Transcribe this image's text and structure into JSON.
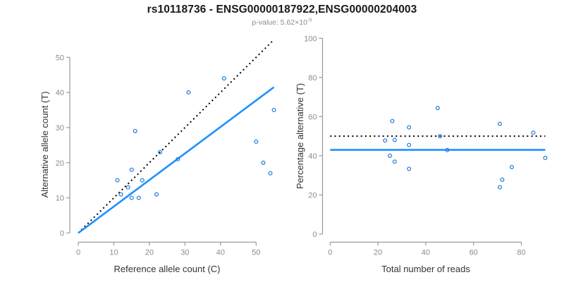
{
  "header": {
    "title": "rs10118736 - ENSG00000187922,ENSG00000204003",
    "pvalue_prefix": "p-value: 5.62×10",
    "pvalue_exponent": "-5"
  },
  "colors": {
    "point": "#2B84DD",
    "fit_line": "#1E90FF",
    "reference_line": "#000000",
    "axis": "#9a9a9a",
    "tick_text": "#8c8c8c",
    "label_text": "#333333"
  },
  "chart_data": [
    {
      "type": "scatter",
      "name": "allele-count-scatter",
      "xlabel": "Reference allele count (C)",
      "ylabel": "Alternative allele count (T)",
      "xlim": [
        0,
        55
      ],
      "ylim": [
        0,
        55
      ],
      "xticks": [
        0,
        10,
        20,
        30,
        40,
        50
      ],
      "yticks": [
        0,
        10,
        20,
        30,
        40,
        50
      ],
      "grid": false,
      "points": [
        [
          11,
          15
        ],
        [
          12,
          11
        ],
        [
          14,
          13
        ],
        [
          15,
          10
        ],
        [
          15,
          18
        ],
        [
          16,
          29
        ],
        [
          17,
          10
        ],
        [
          18,
          15
        ],
        [
          22,
          11
        ],
        [
          23,
          23
        ],
        [
          28,
          21
        ],
        [
          31,
          40
        ],
        [
          41,
          44
        ],
        [
          50,
          26
        ],
        [
          52,
          20
        ],
        [
          54,
          17
        ],
        [
          55,
          35
        ]
      ],
      "lines": [
        {
          "name": "identity-dotted-line",
          "style": "dotted",
          "color": "#000000",
          "from": [
            0,
            0
          ],
          "to": [
            55,
            55
          ]
        },
        {
          "name": "fit-line",
          "style": "solid",
          "color": "#1E90FF",
          "from": [
            0,
            0
          ],
          "to": [
            55,
            41.5
          ]
        }
      ]
    },
    {
      "type": "scatter",
      "name": "percentage-vs-reads-scatter",
      "xlabel": "Total number of reads",
      "ylabel": "Percentage alternative (T)",
      "xlim": [
        0,
        90
      ],
      "ylim": [
        0,
        100
      ],
      "xticks": [
        0,
        20,
        40,
        60,
        80
      ],
      "yticks": [
        0,
        20,
        40,
        60,
        80,
        100
      ],
      "grid": false,
      "points": [
        [
          23,
          47.8
        ],
        [
          25,
          40.0
        ],
        [
          26,
          57.7
        ],
        [
          27,
          48.1
        ],
        [
          27,
          37.0
        ],
        [
          33,
          54.5
        ],
        [
          33,
          45.5
        ],
        [
          33,
          33.3
        ],
        [
          45,
          64.4
        ],
        [
          46,
          50.0
        ],
        [
          49,
          42.9
        ],
        [
          71,
          56.3
        ],
        [
          71,
          23.9
        ],
        [
          72,
          27.8
        ],
        [
          76,
          34.2
        ],
        [
          85,
          51.8
        ],
        [
          90,
          38.9
        ]
      ],
      "lines": [
        {
          "name": "expected-50pct-dotted-line",
          "style": "dotted",
          "color": "#000000",
          "from": [
            0,
            50
          ],
          "to": [
            90,
            50
          ]
        },
        {
          "name": "mean-percentage-line",
          "style": "solid",
          "color": "#1E90FF",
          "from": [
            0,
            43
          ],
          "to": [
            90,
            43
          ]
        }
      ]
    }
  ]
}
